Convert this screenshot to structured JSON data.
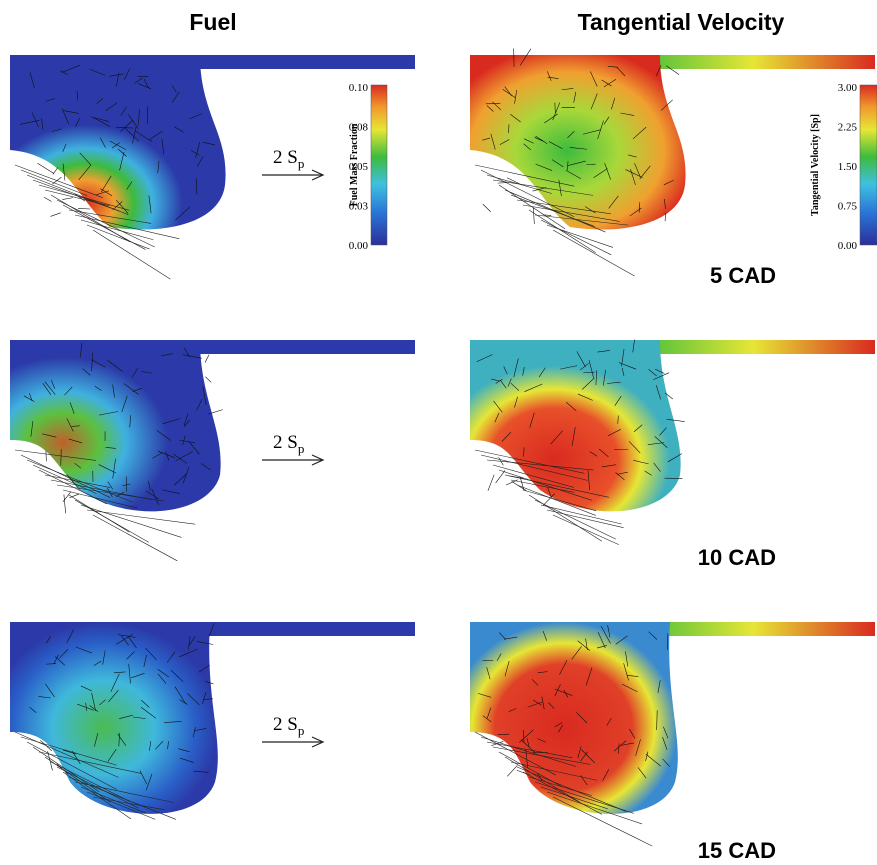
{
  "headers": {
    "left": "Fuel",
    "right": "Tangential Velocity"
  },
  "colorbars": {
    "fuel": {
      "label": "Fuel Mass Fraction",
      "ticks": [
        "0.10",
        "0.08",
        "0.05",
        "0.03",
        "0.00"
      ]
    },
    "velocity": {
      "label": "Tangential Velocity [Sp]",
      "ticks": [
        "3.00",
        "2.25",
        "1.50",
        "0.75",
        "0.00"
      ]
    }
  },
  "rows": [
    {
      "time": "5 CAD",
      "scale": {
        "main": "2 S",
        "sub": "p"
      }
    },
    {
      "time": "10 CAD",
      "scale": {
        "main": "2 S",
        "sub": "p"
      }
    },
    {
      "time": "15 CAD",
      "scale": {
        "main": "2 S",
        "sub": "p"
      }
    }
  ]
}
